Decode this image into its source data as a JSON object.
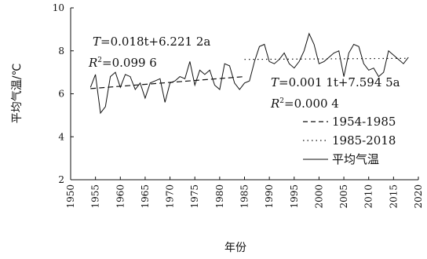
{
  "chart_data": {
    "type": "line",
    "title": "",
    "xlabel": "年份",
    "ylabel": "平均气温/℃",
    "xlim": [
      1950,
      2020
    ],
    "ylim": [
      2,
      10
    ],
    "x_ticks": [
      "1950",
      "1955",
      "1960",
      "1965",
      "1970",
      "1975",
      "1980",
      "1985",
      "1990",
      "1995",
      "2000",
      "2005",
      "2010",
      "2015",
      "2020"
    ],
    "y_ticks": [
      "2",
      "4",
      "6",
      "8",
      "10"
    ],
    "grid": false,
    "legend_position": "bottom-right",
    "annotations": {
      "trend1_eq": {
        "var": "T",
        "text": "=0.018t+6.221 2a"
      },
      "trend1_r2": {
        "var": "R",
        "sup": "2",
        "text": "=0.099 6"
      },
      "trend2_eq": {
        "var": "T",
        "text": "=0.001 1t+7.594 5a"
      },
      "trend2_r2": {
        "var": "R",
        "sup": "2",
        "text": "=0.000 4"
      }
    },
    "series": [
      {
        "name": "平均气温",
        "style": "solid",
        "x": [
          1954,
          1955,
          1956,
          1957,
          1958,
          1959,
          1960,
          1961,
          1962,
          1963,
          1964,
          1965,
          1966,
          1967,
          1968,
          1969,
          1970,
          1971,
          1972,
          1973,
          1974,
          1975,
          1976,
          1977,
          1978,
          1979,
          1980,
          1981,
          1982,
          1983,
          1984,
          1985,
          1986,
          1987,
          1988,
          1989,
          1990,
          1991,
          1992,
          1993,
          1994,
          1995,
          1996,
          1997,
          1998,
          1999,
          2000,
          2001,
          2002,
          2003,
          2004,
          2005,
          2006,
          2007,
          2008,
          2009,
          2010,
          2011,
          2012,
          2013,
          2014,
          2015,
          2016,
          2017,
          2018
        ],
        "y": [
          6.3,
          6.9,
          5.1,
          5.4,
          6.8,
          7.0,
          6.3,
          6.9,
          6.8,
          6.2,
          6.5,
          5.8,
          6.5,
          6.6,
          6.7,
          5.6,
          6.5,
          6.6,
          6.8,
          6.7,
          7.5,
          6.4,
          7.1,
          6.9,
          7.1,
          6.4,
          6.2,
          7.4,
          7.3,
          6.5,
          6.2,
          6.5,
          6.6,
          7.5,
          8.2,
          8.3,
          7.5,
          7.4,
          7.6,
          7.9,
          7.4,
          7.2,
          7.5,
          8.0,
          8.8,
          8.3,
          7.4,
          7.5,
          7.7,
          7.9,
          8.0,
          6.8,
          7.9,
          8.3,
          8.2,
          7.4,
          7.1,
          7.2,
          6.8,
          7.0,
          8.0,
          7.8,
          7.6,
          7.4,
          7.7
        ]
      },
      {
        "name": "1954-1985",
        "style": "dashed",
        "x": [
          1954,
          1985
        ],
        "y": [
          6.24,
          6.8
        ]
      },
      {
        "name": "1985-2018",
        "style": "dotted",
        "x": [
          1985,
          2018
        ],
        "y": [
          7.6,
          7.65
        ]
      }
    ],
    "legend": [
      {
        "label": "1954-1985",
        "style": "dashed"
      },
      {
        "label": "1985-2018",
        "style": "dotted"
      },
      {
        "label": "平均气温",
        "style": "solid"
      }
    ]
  }
}
